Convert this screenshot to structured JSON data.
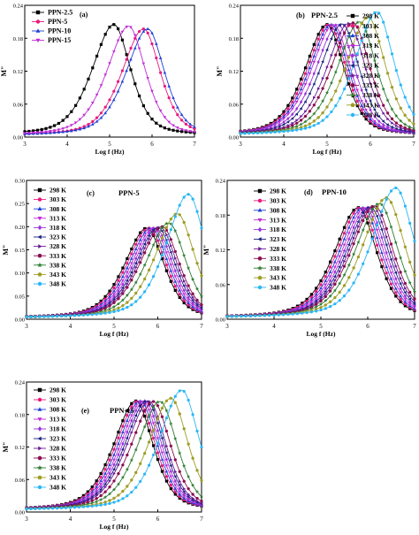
{
  "figure": {
    "xtick_labels": [
      "3",
      "4",
      "5",
      "6",
      "7"
    ]
  },
  "chart_data": [
    {
      "type": "line",
      "panel_label": "(a)",
      "sample_label": "",
      "xlabel": "Log f (Hz)",
      "ylabel": "M\"",
      "xlim": [
        3,
        7
      ],
      "ylim": [
        0,
        0.24
      ],
      "yticks": [
        "0.00",
        "0.06",
        "0.12",
        "0.18",
        "0.24"
      ],
      "legend_position": "top-left",
      "series": [
        {
          "name": "PPN-2.5",
          "color": "#000000",
          "marker": "square",
          "peak_x": 5.1,
          "peak_y": 0.205,
          "base_y": 0.003,
          "width": 1.15
        },
        {
          "name": "PPN-5",
          "color": "#e8197d",
          "marker": "circle",
          "peak_x": 5.8,
          "peak_y": 0.197,
          "base_y": 0.002,
          "width": 1.15
        },
        {
          "name": "PPN-10",
          "color": "#1d3fd6",
          "marker": "triangle-up",
          "peak_x": 5.9,
          "peak_y": 0.197,
          "base_y": 0.002,
          "width": 1.15
        },
        {
          "name": "PPN-15",
          "color": "#c02ad6",
          "marker": "triangle-down",
          "peak_x": 5.45,
          "peak_y": 0.202,
          "base_y": 0.002,
          "width": 1.15
        }
      ]
    },
    {
      "type": "line",
      "panel_label": "(b)",
      "sample_label": "PPN-2.5",
      "xlabel": "Log f (Hz)",
      "ylabel": "M\"",
      "xlim": [
        3,
        7
      ],
      "ylim": [
        0,
        0.24
      ],
      "yticks": [
        "0.00",
        "0.06",
        "0.12",
        "0.18",
        "0.24"
      ],
      "legend_position": "top-right",
      "series": [
        {
          "name": "298 K",
          "color": "#000000",
          "marker": "square",
          "peak_x": 5.0,
          "peak_y": 0.205,
          "base_y": 0.003,
          "width": 1.15
        },
        {
          "name": "303 K",
          "color": "#e8197d",
          "marker": "circle",
          "peak_x": 5.05,
          "peak_y": 0.205,
          "base_y": 0.003,
          "width": 1.15
        },
        {
          "name": "308 K",
          "color": "#1d3fd6",
          "marker": "triangle-up",
          "peak_x": 5.1,
          "peak_y": 0.205,
          "base_y": 0.003,
          "width": 1.15
        },
        {
          "name": "313 K",
          "color": "#c02ad6",
          "marker": "triangle-down",
          "peak_x": 5.15,
          "peak_y": 0.205,
          "base_y": 0.003,
          "width": 1.15
        },
        {
          "name": "318 K",
          "color": "#9b30d9",
          "marker": "diamond",
          "peak_x": 5.25,
          "peak_y": 0.205,
          "base_y": 0.003,
          "width": 1.15
        },
        {
          "name": "323 K",
          "color": "#1a237e",
          "marker": "triangle-left",
          "peak_x": 5.35,
          "peak_y": 0.206,
          "base_y": 0.003,
          "width": 1.15
        },
        {
          "name": "328 K",
          "color": "#6a1b9a",
          "marker": "triangle-right",
          "peak_x": 5.5,
          "peak_y": 0.207,
          "base_y": 0.003,
          "width": 1.15
        },
        {
          "name": "333 K",
          "color": "#880e4f",
          "marker": "hexagon",
          "peak_x": 5.6,
          "peak_y": 0.208,
          "base_y": 0.003,
          "width": 1.15
        },
        {
          "name": "338 K",
          "color": "#2e7d32",
          "marker": "star",
          "peak_x": 5.75,
          "peak_y": 0.21,
          "base_y": 0.003,
          "width": 1.15
        },
        {
          "name": "343 K",
          "color": "#9e9d24",
          "marker": "pentagon",
          "peak_x": 5.95,
          "peak_y": 0.218,
          "base_y": 0.003,
          "width": 1.15
        },
        {
          "name": "348 K",
          "color": "#29b6f6",
          "marker": "circle",
          "peak_x": 6.15,
          "peak_y": 0.228,
          "base_y": 0.003,
          "width": 1.15
        }
      ]
    },
    {
      "type": "line",
      "panel_label": "(c)",
      "sample_label": "PPN-5",
      "xlabel": "Log f (Hz)",
      "ylabel": "M\"",
      "xlim": [
        3,
        7
      ],
      "ylim": [
        0,
        0.3
      ],
      "yticks": [
        "0.00",
        "0.05",
        "0.10",
        "0.15",
        "0.20",
        "0.25",
        "0.30"
      ],
      "legend_position": "top-left",
      "series": [
        {
          "name": "298 K",
          "color": "#000000",
          "marker": "square",
          "peak_x": 5.75,
          "peak_y": 0.197,
          "base_y": 0.002,
          "width": 1.15
        },
        {
          "name": "303 K",
          "color": "#e8197d",
          "marker": "circle",
          "peak_x": 5.8,
          "peak_y": 0.197,
          "base_y": 0.002,
          "width": 1.15
        },
        {
          "name": "308 K",
          "color": "#1d3fd6",
          "marker": "triangle-up",
          "peak_x": 5.85,
          "peak_y": 0.197,
          "base_y": 0.002,
          "width": 1.15
        },
        {
          "name": "313 K",
          "color": "#c02ad6",
          "marker": "triangle-down",
          "peak_x": 5.9,
          "peak_y": 0.197,
          "base_y": 0.002,
          "width": 1.15
        },
        {
          "name": "318 K",
          "color": "#9b30d9",
          "marker": "diamond",
          "peak_x": 5.95,
          "peak_y": 0.197,
          "base_y": 0.002,
          "width": 1.15
        },
        {
          "name": "323 K",
          "color": "#1a237e",
          "marker": "triangle-left",
          "peak_x": 6.0,
          "peak_y": 0.198,
          "base_y": 0.002,
          "width": 1.15
        },
        {
          "name": "328 K",
          "color": "#6a1b9a",
          "marker": "triangle-right",
          "peak_x": 6.05,
          "peak_y": 0.199,
          "base_y": 0.002,
          "width": 1.15
        },
        {
          "name": "333 K",
          "color": "#880e4f",
          "marker": "hexagon",
          "peak_x": 6.1,
          "peak_y": 0.2,
          "base_y": 0.002,
          "width": 1.15
        },
        {
          "name": "338 K",
          "color": "#2e7d32",
          "marker": "star",
          "peak_x": 6.25,
          "peak_y": 0.208,
          "base_y": 0.002,
          "width": 1.15
        },
        {
          "name": "343 K",
          "color": "#9e9d24",
          "marker": "pentagon",
          "peak_x": 6.45,
          "peak_y": 0.228,
          "base_y": 0.002,
          "width": 1.15
        },
        {
          "name": "348 K",
          "color": "#29b6f6",
          "marker": "circle",
          "peak_x": 6.7,
          "peak_y": 0.27,
          "base_y": 0.002,
          "width": 1.15
        }
      ]
    },
    {
      "type": "line",
      "panel_label": "(d)",
      "sample_label": "PPN-10",
      "xlabel": "Log f (Hz)",
      "ylabel": "M\"",
      "xlim": [
        3,
        7
      ],
      "ylim": [
        0,
        0.24
      ],
      "yticks": [
        "0.00",
        "0.06",
        "0.12",
        "0.18",
        "0.24"
      ],
      "legend_position": "top-left",
      "series": [
        {
          "name": "298 K",
          "color": "#000000",
          "marker": "square",
          "peak_x": 5.8,
          "peak_y": 0.193,
          "base_y": 0.002,
          "width": 1.15
        },
        {
          "name": "303 K",
          "color": "#e8197d",
          "marker": "circle",
          "peak_x": 5.85,
          "peak_y": 0.193,
          "base_y": 0.002,
          "width": 1.15
        },
        {
          "name": "308 K",
          "color": "#1d3fd6",
          "marker": "triangle-up",
          "peak_x": 5.9,
          "peak_y": 0.193,
          "base_y": 0.002,
          "width": 1.15
        },
        {
          "name": "313 K",
          "color": "#c02ad6",
          "marker": "triangle-down",
          "peak_x": 5.95,
          "peak_y": 0.193,
          "base_y": 0.002,
          "width": 1.15
        },
        {
          "name": "318 K",
          "color": "#9b30d9",
          "marker": "diamond",
          "peak_x": 6.0,
          "peak_y": 0.193,
          "base_y": 0.002,
          "width": 1.15
        },
        {
          "name": "323 K",
          "color": "#1a237e",
          "marker": "triangle-left",
          "peak_x": 6.05,
          "peak_y": 0.194,
          "base_y": 0.002,
          "width": 1.15
        },
        {
          "name": "328 K",
          "color": "#6a1b9a",
          "marker": "triangle-right",
          "peak_x": 6.1,
          "peak_y": 0.195,
          "base_y": 0.002,
          "width": 1.15
        },
        {
          "name": "333 K",
          "color": "#880e4f",
          "marker": "hexagon",
          "peak_x": 6.15,
          "peak_y": 0.196,
          "base_y": 0.002,
          "width": 1.15
        },
        {
          "name": "338 K",
          "color": "#2e7d32",
          "marker": "star",
          "peak_x": 6.25,
          "peak_y": 0.2,
          "base_y": 0.002,
          "width": 1.15
        },
        {
          "name": "343 K",
          "color": "#9e9d24",
          "marker": "pentagon",
          "peak_x": 6.4,
          "peak_y": 0.21,
          "base_y": 0.002,
          "width": 1.15
        },
        {
          "name": "348 K",
          "color": "#29b6f6",
          "marker": "circle",
          "peak_x": 6.6,
          "peak_y": 0.227,
          "base_y": 0.002,
          "width": 1.15
        }
      ]
    },
    {
      "type": "line",
      "panel_label": "(e)",
      "sample_label": "PPN-15",
      "xlabel": "Log f (Hz)",
      "ylabel": "M\"",
      "xlim": [
        3,
        7
      ],
      "ylim": [
        0,
        0.24
      ],
      "yticks": [
        "0.00",
        "0.06",
        "0.12",
        "0.18",
        "0.24"
      ],
      "legend_position": "top-left",
      "series": [
        {
          "name": "298 K",
          "color": "#000000",
          "marker": "square",
          "peak_x": 5.5,
          "peak_y": 0.205,
          "base_y": 0.003,
          "width": 1.15
        },
        {
          "name": "303 K",
          "color": "#e8197d",
          "marker": "circle",
          "peak_x": 5.55,
          "peak_y": 0.205,
          "base_y": 0.003,
          "width": 1.15
        },
        {
          "name": "308 K",
          "color": "#1d3fd6",
          "marker": "triangle-up",
          "peak_x": 5.6,
          "peak_y": 0.205,
          "base_y": 0.003,
          "width": 1.15
        },
        {
          "name": "313 K",
          "color": "#c02ad6",
          "marker": "triangle-down",
          "peak_x": 5.65,
          "peak_y": 0.205,
          "base_y": 0.003,
          "width": 1.15
        },
        {
          "name": "318 K",
          "color": "#9b30d9",
          "marker": "diamond",
          "peak_x": 5.7,
          "peak_y": 0.205,
          "base_y": 0.003,
          "width": 1.15
        },
        {
          "name": "323 K",
          "color": "#1a237e",
          "marker": "triangle-left",
          "peak_x": 5.75,
          "peak_y": 0.205,
          "base_y": 0.003,
          "width": 1.15
        },
        {
          "name": "328 K",
          "color": "#6a1b9a",
          "marker": "triangle-right",
          "peak_x": 5.8,
          "peak_y": 0.204,
          "base_y": 0.003,
          "width": 1.15
        },
        {
          "name": "333 K",
          "color": "#880e4f",
          "marker": "hexagon",
          "peak_x": 5.9,
          "peak_y": 0.204,
          "base_y": 0.003,
          "width": 1.15
        },
        {
          "name": "338 K",
          "color": "#2e7d32",
          "marker": "star",
          "peak_x": 6.05,
          "peak_y": 0.204,
          "base_y": 0.003,
          "width": 1.15
        },
        {
          "name": "343 K",
          "color": "#9e9d24",
          "marker": "pentagon",
          "peak_x": 6.3,
          "peak_y": 0.21,
          "base_y": 0.003,
          "width": 1.15
        },
        {
          "name": "348 K",
          "color": "#29b6f6",
          "marker": "circle",
          "peak_x": 6.55,
          "peak_y": 0.225,
          "base_y": 0.003,
          "width": 1.15
        }
      ]
    }
  ]
}
